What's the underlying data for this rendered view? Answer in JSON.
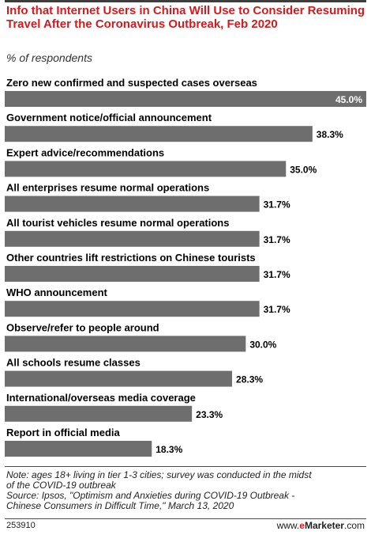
{
  "header": {
    "title": "Info that Internet Users in China Will Use to Consider Resuming Travel After the Coronavirus Outbreak, Feb 2020",
    "subtitle": "% of respondents"
  },
  "chart_data": {
    "type": "bar",
    "orientation": "horizontal",
    "title": "Info that Internet Users in China Will Use to Consider Resuming Travel After the Coronavirus Outbreak, Feb 2020",
    "subtitle": "% of respondents",
    "xlabel": "",
    "ylabel": "",
    "xlim": [
      0,
      45
    ],
    "grid": false,
    "legend": "none",
    "categories": [
      "Zero new confirmed and suspected cases overseas",
      "Government notice/official announcement",
      "Expert advice/recommendations",
      "All enterprises resume normal operations",
      "All tourist vehicles resume normal operations",
      "Other countries lift restrictions on Chinese tourists",
      "WHO announcement",
      "Observe/refer to people around",
      "All schools resume classes",
      "International/overseas media coverage",
      "Report in official media"
    ],
    "values": [
      45.0,
      38.3,
      35.0,
      31.7,
      31.7,
      31.7,
      31.7,
      30.0,
      28.3,
      23.3,
      18.3
    ],
    "value_labels": [
      "45.0%",
      "38.3%",
      "35.0%",
      "31.7%",
      "31.7%",
      "31.7%",
      "31.7%",
      "30.0%",
      "28.3%",
      "23.3%",
      "18.3%"
    ],
    "bar_color": "#6e6e6e"
  },
  "footer": {
    "note_line1": "Note: ages 18+ living in tier 1-3 cities; survey was conducted in the midst",
    "note_line2": "of the COVID-19 outbreak",
    "source_line1": "Source: Ipsos, \"Optimism and Anxieties during COVID-19 Outbreak -",
    "source_line2": "Chinese Consumers in Difficult Time,\" March 13, 2020",
    "chart_id": "253910",
    "brand_prefix": "www.",
    "brand_e": "e",
    "brand_name": "Marketer",
    "brand_suffix": ".com"
  }
}
